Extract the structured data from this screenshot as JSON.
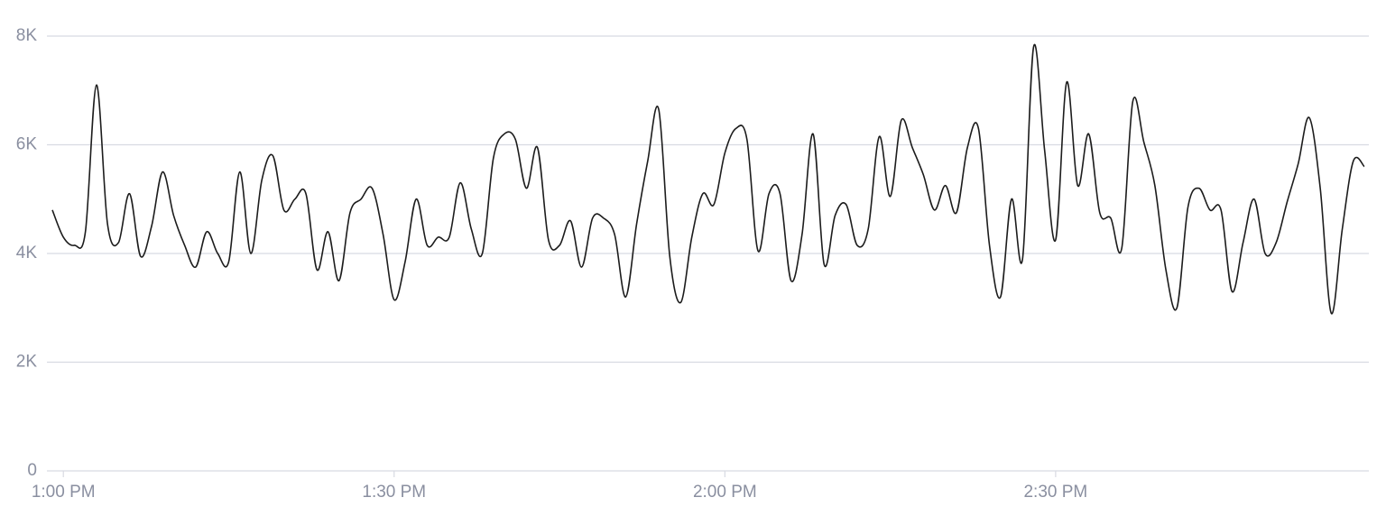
{
  "chart_data": {
    "type": "line",
    "x": [
      59,
      60,
      61,
      62,
      63,
      64,
      65,
      66,
      67,
      68,
      69,
      70,
      71,
      72,
      73,
      74,
      75,
      76,
      77,
      78,
      79,
      80,
      81,
      82,
      83,
      84,
      85,
      86,
      87,
      88,
      89,
      90,
      91,
      92,
      93,
      94,
      95,
      96,
      97,
      98,
      99,
      100,
      101,
      102,
      103,
      104,
      105,
      106,
      107,
      108,
      109,
      110,
      111,
      112,
      113,
      114,
      115,
      116,
      117,
      118,
      119,
      120,
      121,
      122,
      123,
      124,
      125,
      126,
      127,
      128,
      129,
      130,
      131,
      132,
      133,
      134,
      135,
      136,
      137,
      138,
      139,
      140,
      141,
      142,
      143,
      144,
      145,
      146,
      147,
      148,
      149,
      150,
      151,
      152,
      153,
      154,
      155,
      156,
      157,
      158,
      159,
      160,
      161,
      162,
      163,
      164,
      165,
      166,
      167,
      168,
      169,
      170,
      171,
      172,
      173,
      174,
      175,
      176,
      177,
      178
    ],
    "series": [
      {
        "color": "#1c1c1c",
        "values": [
          4800,
          4300,
          4150,
          4400,
          7100,
          4550,
          4200,
          5100,
          3950,
          4500,
          5500,
          4700,
          4150,
          3750,
          4400,
          4000,
          3850,
          5500,
          4000,
          5350,
          5800,
          4800,
          5000,
          5100,
          3700,
          4400,
          3500,
          4750,
          5000,
          5200,
          4350,
          3150,
          3850,
          5000,
          4150,
          4300,
          4300,
          5300,
          4450,
          4000,
          5750,
          6200,
          6100,
          5200,
          5950,
          4250,
          4150,
          4600,
          3750,
          4650,
          4650,
          4350,
          3200,
          4550,
          5700,
          6650,
          3950,
          3100,
          4300,
          5100,
          4900,
          5850,
          6300,
          6100,
          4050,
          5100,
          5100,
          3500,
          4350,
          6200,
          3800,
          4700,
          4900,
          4150,
          4450,
          6150,
          5050,
          6450,
          5950,
          5450,
          4800,
          5250,
          4750,
          5950,
          6300,
          4150,
          3200,
          5000,
          3900,
          7800,
          5900,
          4250,
          7150,
          5250,
          6200,
          4750,
          4650,
          4100,
          6800,
          6050,
          5250,
          3700,
          3000,
          4850,
          5200,
          4800,
          4800,
          3300,
          4200,
          5000,
          4000,
          4200,
          4950,
          5650,
          6500,
          5200,
          2900,
          4450,
          5700,
          5600
        ]
      }
    ],
    "xlim": [
      59,
      178
    ],
    "xticks": [
      {
        "value": 60,
        "label": "1:00 PM"
      },
      {
        "value": 90,
        "label": "1:30 PM"
      },
      {
        "value": 120,
        "label": "2:00 PM"
      },
      {
        "value": 150,
        "label": "2:30 PM"
      }
    ],
    "ylim": [
      0,
      8000
    ],
    "yticks": [
      0,
      {
        "value": 2000,
        "label": "2K"
      },
      {
        "value": 4000,
        "label": "4K"
      },
      {
        "value": 6000,
        "label": "6K"
      },
      {
        "value": 8000,
        "label": "8K"
      }
    ],
    "grid": true
  }
}
